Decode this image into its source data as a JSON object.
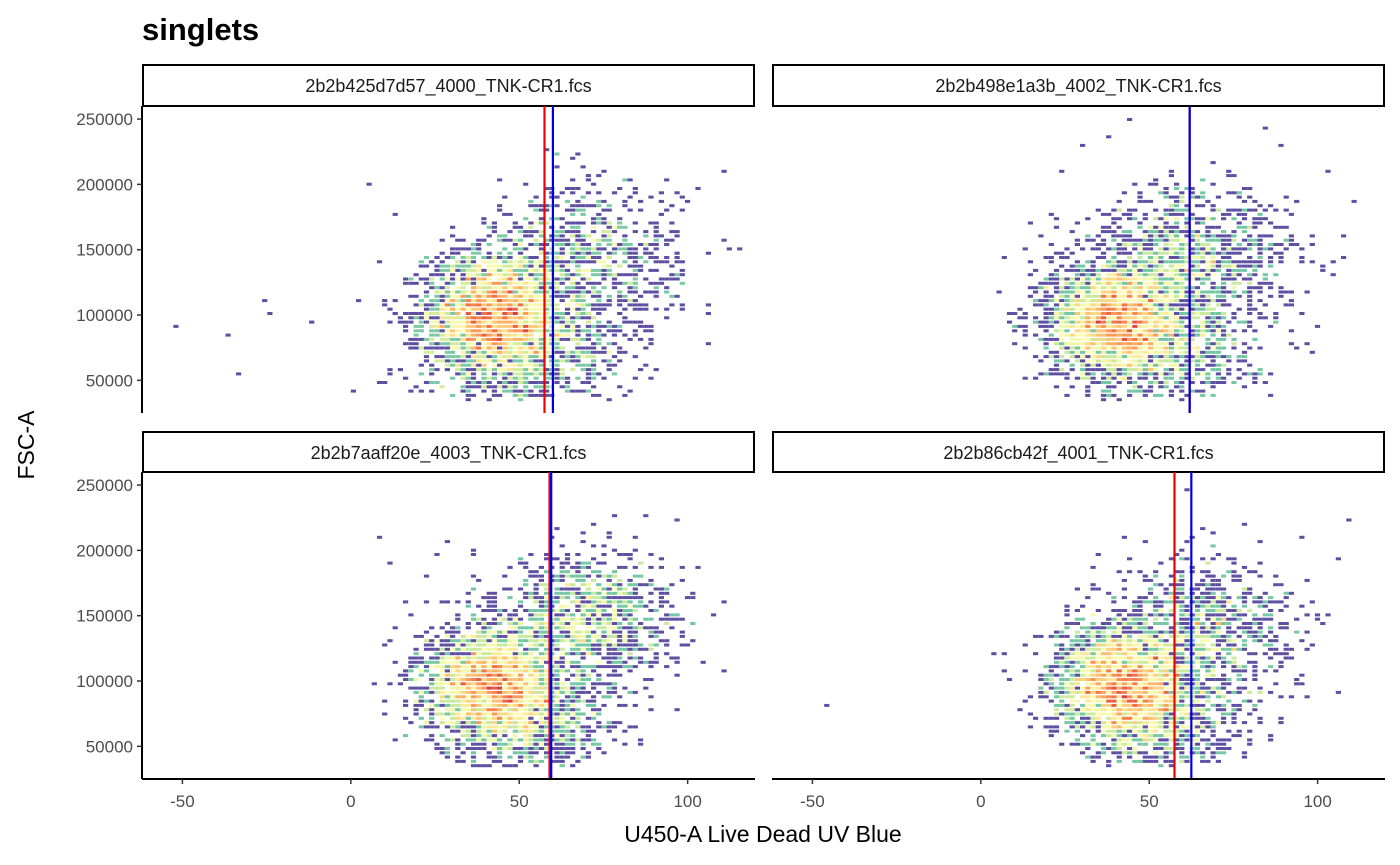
{
  "chart_data": {
    "type": "heatmap",
    "subtype": "faceted hexbin density scatter",
    "title": "singlets",
    "xlabel": "U450-A Live Dead UV Blue",
    "ylabel": "FSC-A",
    "xlim": [
      -62,
      120
    ],
    "ylim": [
      25000,
      260000
    ],
    "x_ticks": [
      -50,
      0,
      50,
      100
    ],
    "y_ticks": [
      50000,
      100000,
      150000,
      200000,
      250000
    ],
    "x_tick_labels": [
      "-50",
      "0",
      "50",
      "100"
    ],
    "y_tick_labels": [
      "50000",
      "100000",
      "150000",
      "200000",
      "250000"
    ],
    "grid": false,
    "legend": "none",
    "colors": {
      "gate_red": "#ee0000",
      "gate_blue": "#0000dd",
      "density_palette": [
        "#5e4fa2",
        "#3288bd",
        "#66c2a5",
        "#abdda4",
        "#e6f598",
        "#ffffbf",
        "#fee08b",
        "#fdae61",
        "#f46d43",
        "#d53e4f"
      ]
    },
    "panels": [
      {
        "name": "2b2b425d7d57_4000_TNK-CR1.fcs",
        "red_gate_x": 57.5,
        "blue_gate_x": 60,
        "clusters": [
          {
            "cx": 42,
            "cy": 100000,
            "sx": 10,
            "sy": 24000,
            "n": 2600
          },
          {
            "cx": 55,
            "cy": 70000,
            "sx": 14,
            "sy": 24000,
            "n": 700
          },
          {
            "cx": 70,
            "cy": 140000,
            "sx": 14,
            "sy": 30000,
            "n": 800
          }
        ],
        "outliers": [
          [
            -52,
            90000
          ],
          [
            -37,
            83000
          ],
          [
            -34,
            53000
          ],
          [
            -26,
            110000
          ],
          [
            -24,
            99000
          ],
          [
            -12,
            95000
          ],
          [
            0,
            40000
          ],
          [
            6,
            200000
          ],
          [
            13,
            177000
          ],
          [
            8,
            140000
          ],
          [
            58,
            225000
          ],
          [
            93,
            204000
          ],
          [
            103,
            196000
          ],
          [
            111,
            211000
          ]
        ]
      },
      {
        "name": "2b2b498e1a3b_4002_TNK-CR1.fcs",
        "red_gate_x": 62,
        "blue_gate_x": 62,
        "clusters": [
          {
            "cx": 40,
            "cy": 95000,
            "sx": 10,
            "sy": 22000,
            "n": 2600
          },
          {
            "cx": 58,
            "cy": 75000,
            "sx": 12,
            "sy": 22000,
            "n": 600
          },
          {
            "cx": 62,
            "cy": 140000,
            "sx": 15,
            "sy": 28000,
            "n": 1100
          }
        ],
        "outliers": [
          [
            6,
            118000
          ],
          [
            13,
            150000
          ],
          [
            18,
            160000
          ],
          [
            38,
            237000
          ],
          [
            57,
            211000
          ],
          [
            69,
            215000
          ],
          [
            85,
            243000
          ],
          [
            89,
            229000
          ],
          [
            93,
            185000
          ],
          [
            98,
            155000
          ],
          [
            105,
            140000
          ]
        ]
      },
      {
        "name": "2b2b7aaff20e_4003_TNK-CR1.fcs",
        "red_gate_x": 59,
        "blue_gate_x": 59.5,
        "clusters": [
          {
            "cx": 42,
            "cy": 97000,
            "sx": 10,
            "sy": 22000,
            "n": 2600
          },
          {
            "cx": 55,
            "cy": 70000,
            "sx": 12,
            "sy": 22000,
            "n": 700
          },
          {
            "cx": 70,
            "cy": 145000,
            "sx": 13,
            "sy": 25000,
            "n": 1100
          }
        ],
        "outliers": [
          [
            8,
            208000
          ],
          [
            12,
            190000
          ],
          [
            16,
            160000
          ],
          [
            28,
            207000
          ],
          [
            36,
            201000
          ],
          [
            60,
            210000
          ],
          [
            88,
            227000
          ],
          [
            103,
            185000
          ],
          [
            108,
            150000
          ],
          [
            111,
            160000
          ]
        ]
      },
      {
        "name": "2b2b86cb42f_4001_TNK-CR1.fcs",
        "red_gate_x": 57.5,
        "blue_gate_x": 62.5,
        "clusters": [
          {
            "cx": 42,
            "cy": 97000,
            "sx": 10,
            "sy": 22000,
            "n": 2500
          },
          {
            "cx": 56,
            "cy": 70000,
            "sx": 12,
            "sy": 22000,
            "n": 650
          },
          {
            "cx": 65,
            "cy": 140000,
            "sx": 14,
            "sy": 26000,
            "n": 850
          }
        ],
        "outliers": [
          [
            -45,
            80000
          ],
          [
            4,
            120000
          ],
          [
            8,
            100000
          ],
          [
            35,
            195000
          ],
          [
            61,
            247000
          ],
          [
            66,
            215000
          ],
          [
            78,
            220000
          ],
          [
            95,
            208000
          ],
          [
            103,
            150000
          ],
          [
            106,
            193000
          ]
        ]
      }
    ]
  }
}
